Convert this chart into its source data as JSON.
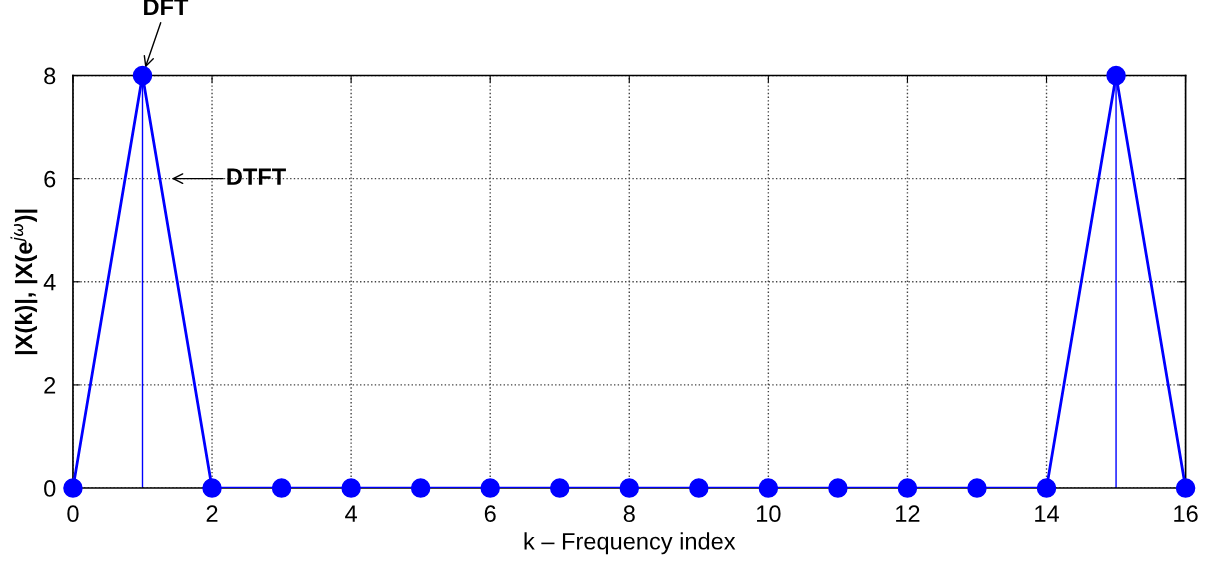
{
  "chart_data": {
    "type": "line",
    "xlabel": "k – Frequency index",
    "ylabel": "|X(k)|, |X(e$^{jω}$)|",
    "x": [
      0,
      1,
      2,
      3,
      4,
      5,
      6,
      7,
      8,
      9,
      10,
      11,
      12,
      13,
      14,
      15,
      16
    ],
    "series": [
      {
        "color": "#0000ff",
        "values": [
          0,
          8,
          0,
          0,
          0,
          0,
          0,
          0,
          0,
          0,
          0,
          0,
          0,
          0,
          0,
          8,
          0
        ]
      },
      {
        "type": "lollipop",
        "color": "#0000ff",
        "marker": "circle",
        "values": [
          0,
          8,
          0,
          0,
          0,
          0,
          0,
          0,
          0,
          0,
          0,
          0,
          0,
          0,
          0,
          8,
          0
        ]
      }
    ],
    "annotations": [
      {
        "text": "DFT",
        "x": 1,
        "y": 8
      },
      {
        "text": "DTFT",
        "x": 1.3,
        "y": 6
      }
    ],
    "xlim": [
      0,
      16
    ],
    "ylim": [
      0,
      8
    ],
    "xticks": [
      0,
      2,
      4,
      6,
      8,
      10,
      12,
      14,
      16
    ],
    "yticks": [
      0,
      2,
      4,
      6,
      8
    ],
    "grid": true,
    "line_style": "solid"
  }
}
